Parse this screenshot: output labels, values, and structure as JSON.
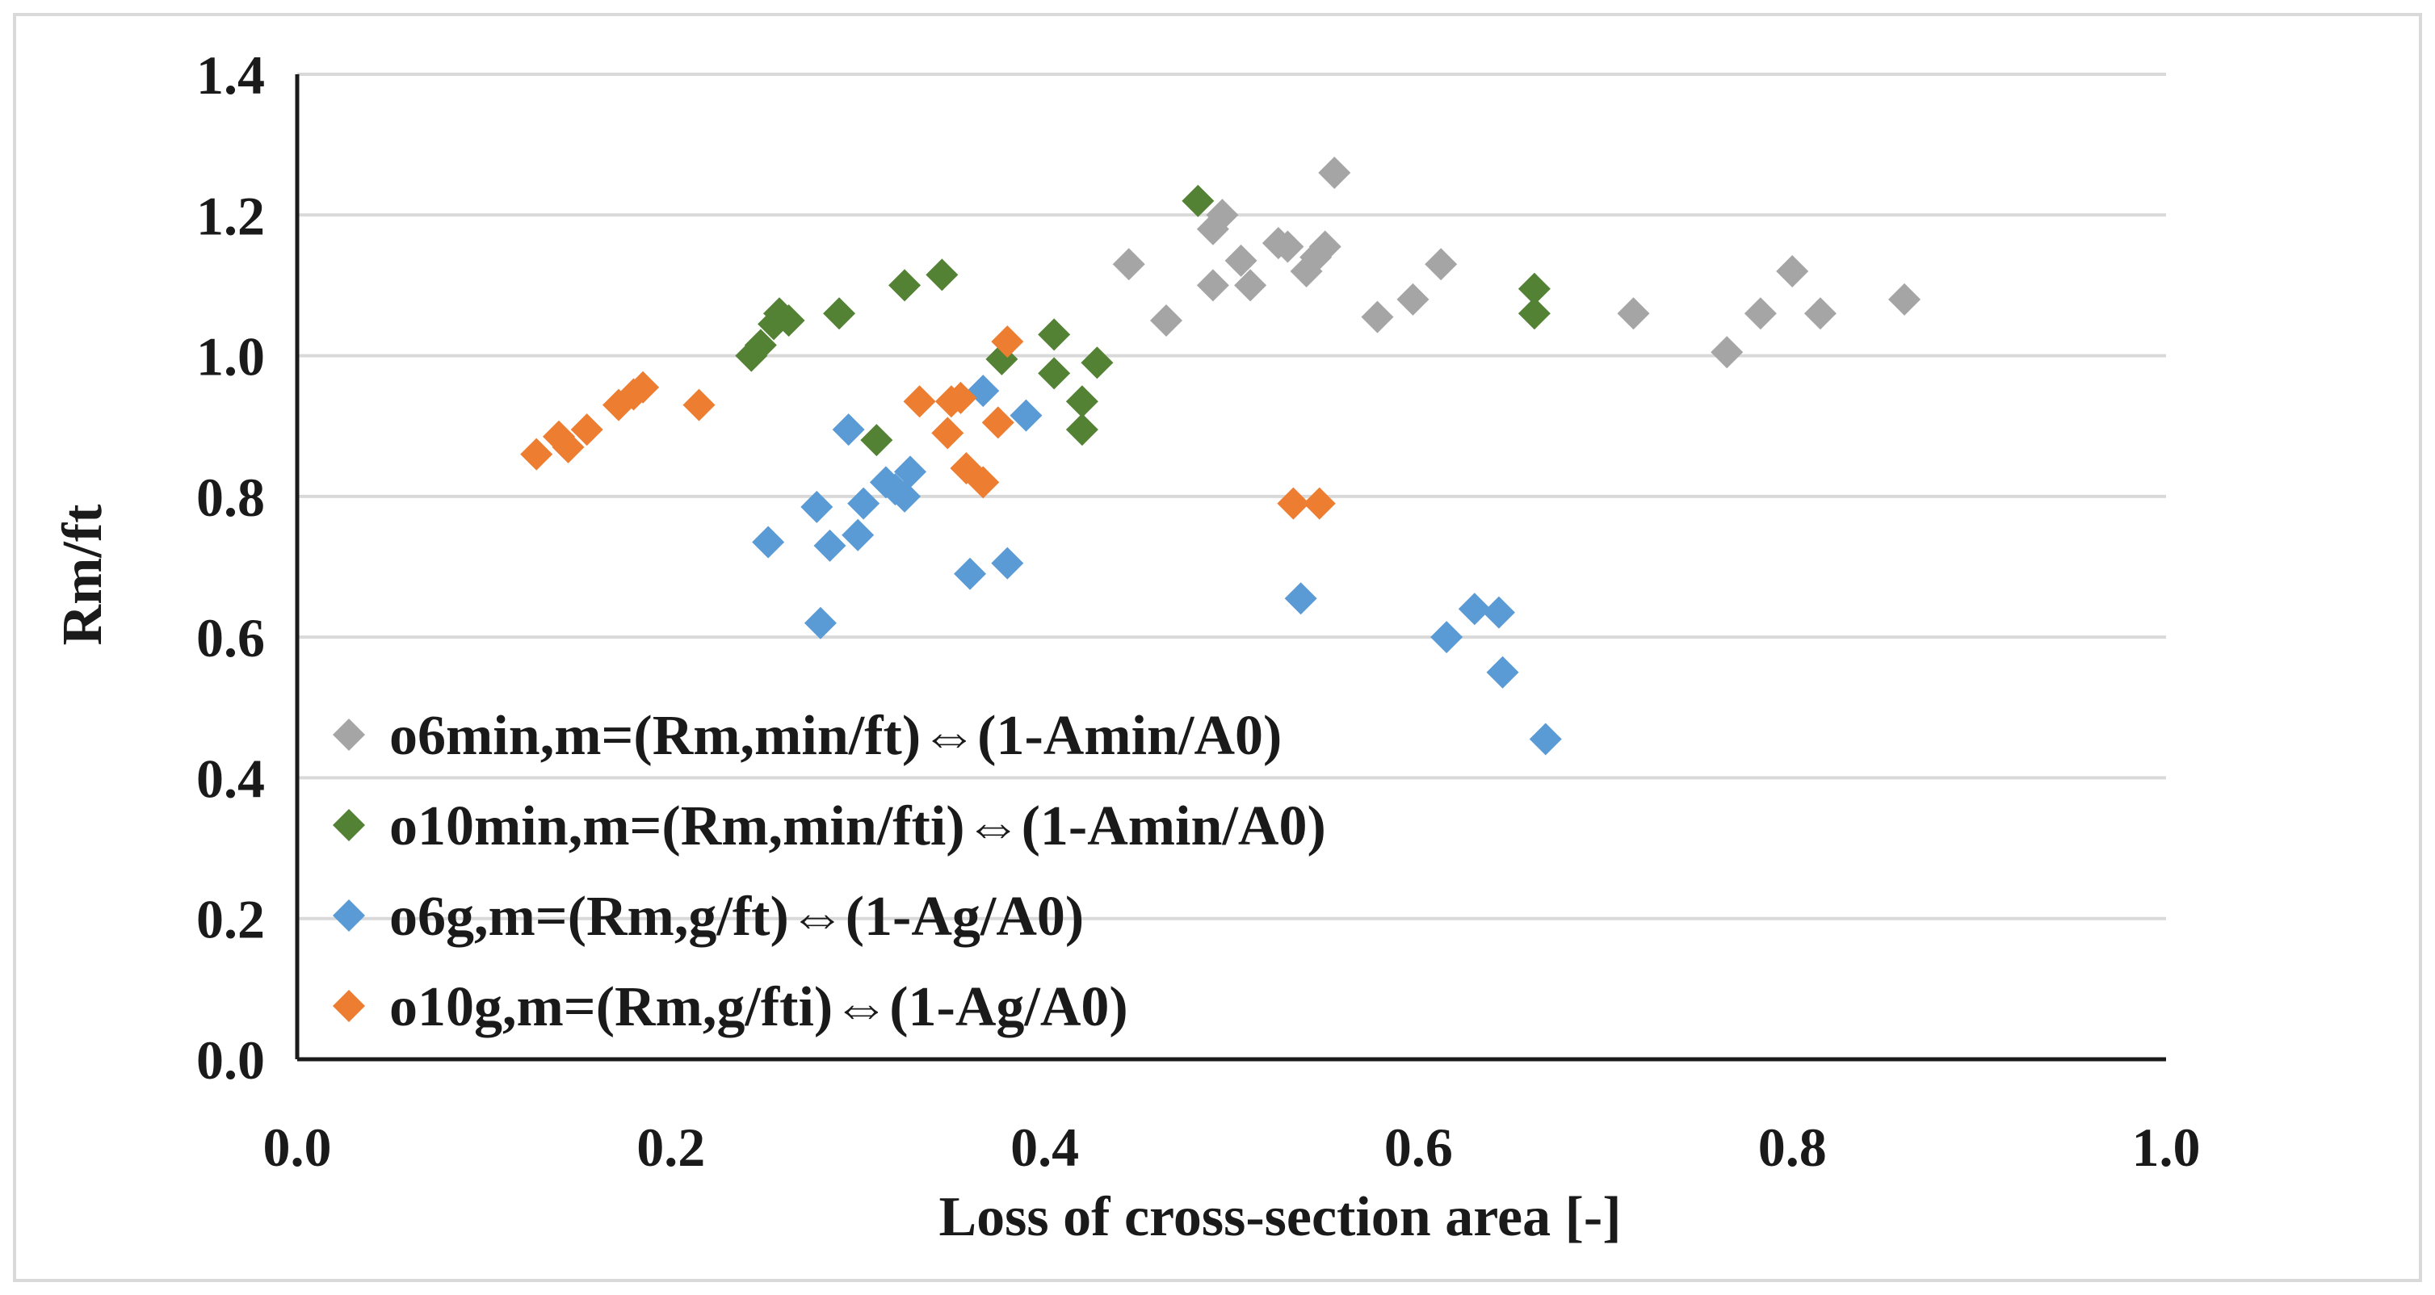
{
  "chart_data": {
    "type": "scatter",
    "title": "",
    "xlabel": "Loss of cross-section area [-]",
    "ylabel": "Rm/ft",
    "xlim": [
      0.0,
      1.0
    ],
    "ylim": [
      0.0,
      1.4
    ],
    "x_ticks": [
      "0.0",
      "0.2",
      "0.4",
      "0.6",
      "0.8",
      "1.0"
    ],
    "y_ticks": [
      "0.0",
      "0.2",
      "0.4",
      "0.6",
      "0.8",
      "1.0",
      "1.2",
      "1.4"
    ],
    "grid": "horizontal",
    "legend_position": "bottom-left",
    "marker": "diamond",
    "series": [
      {
        "name": "o6min,m=(Rm,min/ft)⇔(1-Amin/A0)",
        "color": "#a5a5a5",
        "points": [
          [
            0.445,
            1.13
          ],
          [
            0.465,
            1.05
          ],
          [
            0.49,
            1.1
          ],
          [
            0.49,
            1.18
          ],
          [
            0.495,
            1.2
          ],
          [
            0.505,
            1.135
          ],
          [
            0.51,
            1.1
          ],
          [
            0.525,
            1.16
          ],
          [
            0.53,
            1.155
          ],
          [
            0.54,
            1.12
          ],
          [
            0.545,
            1.14
          ],
          [
            0.55,
            1.155
          ],
          [
            0.555,
            1.26
          ],
          [
            0.578,
            1.055
          ],
          [
            0.597,
            1.08
          ],
          [
            0.612,
            1.13
          ],
          [
            0.715,
            1.06
          ],
          [
            0.765,
            1.005
          ],
          [
            0.783,
            1.06
          ],
          [
            0.8,
            1.12
          ],
          [
            0.815,
            1.06
          ],
          [
            0.86,
            1.08
          ]
        ]
      },
      {
        "name": "o10min,m=(Rm,min/fti)⇔(1-Amin/A0)",
        "color": "#548235",
        "points": [
          [
            0.243,
            1.0
          ],
          [
            0.248,
            1.015
          ],
          [
            0.255,
            1.045
          ],
          [
            0.258,
            1.06
          ],
          [
            0.263,
            1.05
          ],
          [
            0.29,
            1.06
          ],
          [
            0.31,
            0.88
          ],
          [
            0.325,
            1.1
          ],
          [
            0.345,
            1.115
          ],
          [
            0.377,
            0.995
          ],
          [
            0.405,
            1.03
          ],
          [
            0.405,
            0.975
          ],
          [
            0.42,
            0.935
          ],
          [
            0.42,
            0.895
          ],
          [
            0.428,
            0.99
          ],
          [
            0.482,
            1.22
          ],
          [
            0.662,
            1.095
          ],
          [
            0.662,
            1.06
          ]
        ]
      },
      {
        "name": "o6g,m=(Rm,g/ft)⇔(1-Ag/A0)",
        "color": "#5b9bd5",
        "points": [
          [
            0.252,
            0.735
          ],
          [
            0.278,
            0.785
          ],
          [
            0.28,
            0.62
          ],
          [
            0.285,
            0.73
          ],
          [
            0.295,
            0.895
          ],
          [
            0.3,
            0.745
          ],
          [
            0.303,
            0.79
          ],
          [
            0.315,
            0.82
          ],
          [
            0.32,
            0.81
          ],
          [
            0.325,
            0.8
          ],
          [
            0.328,
            0.835
          ],
          [
            0.36,
            0.69
          ],
          [
            0.367,
            0.95
          ],
          [
            0.38,
            0.705
          ],
          [
            0.39,
            0.915
          ],
          [
            0.537,
            0.655
          ],
          [
            0.615,
            0.6
          ],
          [
            0.63,
            0.64
          ],
          [
            0.643,
            0.635
          ],
          [
            0.645,
            0.55
          ],
          [
            0.668,
            0.455
          ]
        ]
      },
      {
        "name": "o10g,m=(Rm,g/fti)⇔(1-Ag/A0)",
        "color": "#ed7d31",
        "points": [
          [
            0.128,
            0.86
          ],
          [
            0.14,
            0.885
          ],
          [
            0.145,
            0.87
          ],
          [
            0.155,
            0.895
          ],
          [
            0.172,
            0.93
          ],
          [
            0.18,
            0.945
          ],
          [
            0.185,
            0.955
          ],
          [
            0.215,
            0.93
          ],
          [
            0.333,
            0.935
          ],
          [
            0.348,
            0.89
          ],
          [
            0.35,
            0.935
          ],
          [
            0.355,
            0.94
          ],
          [
            0.358,
            0.84
          ],
          [
            0.367,
            0.82
          ],
          [
            0.375,
            0.905
          ],
          [
            0.38,
            1.02
          ],
          [
            0.533,
            0.79
          ],
          [
            0.547,
            0.79
          ]
        ]
      }
    ]
  }
}
